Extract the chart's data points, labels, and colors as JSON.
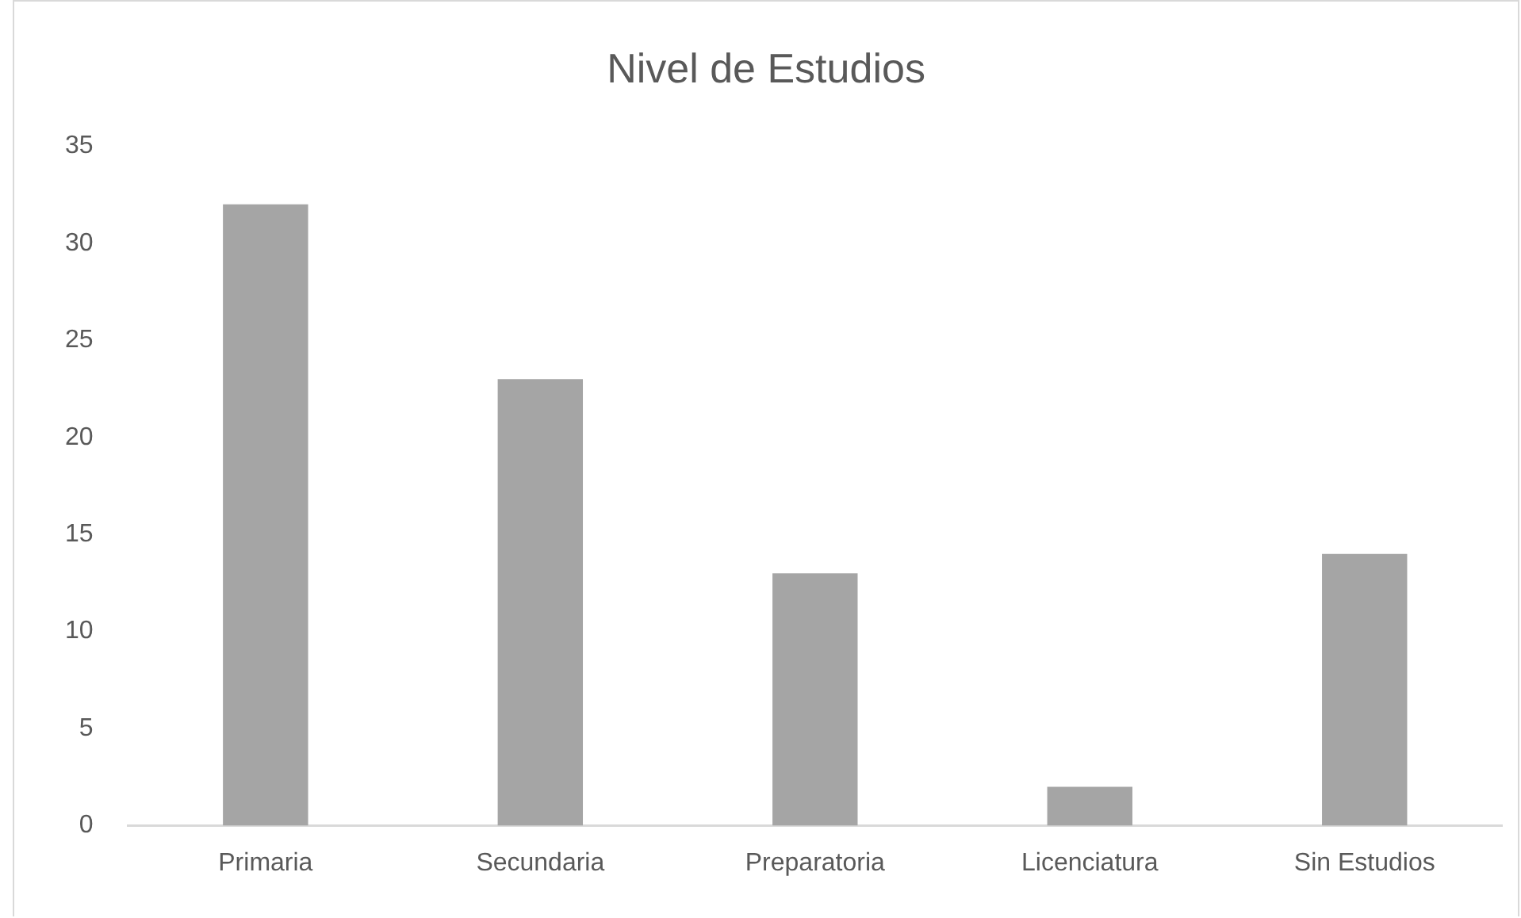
{
  "chart_data": {
    "type": "bar",
    "title": "Nivel de Estudios",
    "categories": [
      "Primaria",
      "Secundaria",
      "Preparatoria",
      "Licenciatura",
      "Sin Estudios"
    ],
    "values": [
      32,
      23,
      13,
      2,
      14
    ],
    "color": "#a5a5a5",
    "ylim": [
      0,
      35
    ],
    "yticks": [
      0,
      5,
      10,
      15,
      20,
      25,
      30,
      35
    ]
  }
}
